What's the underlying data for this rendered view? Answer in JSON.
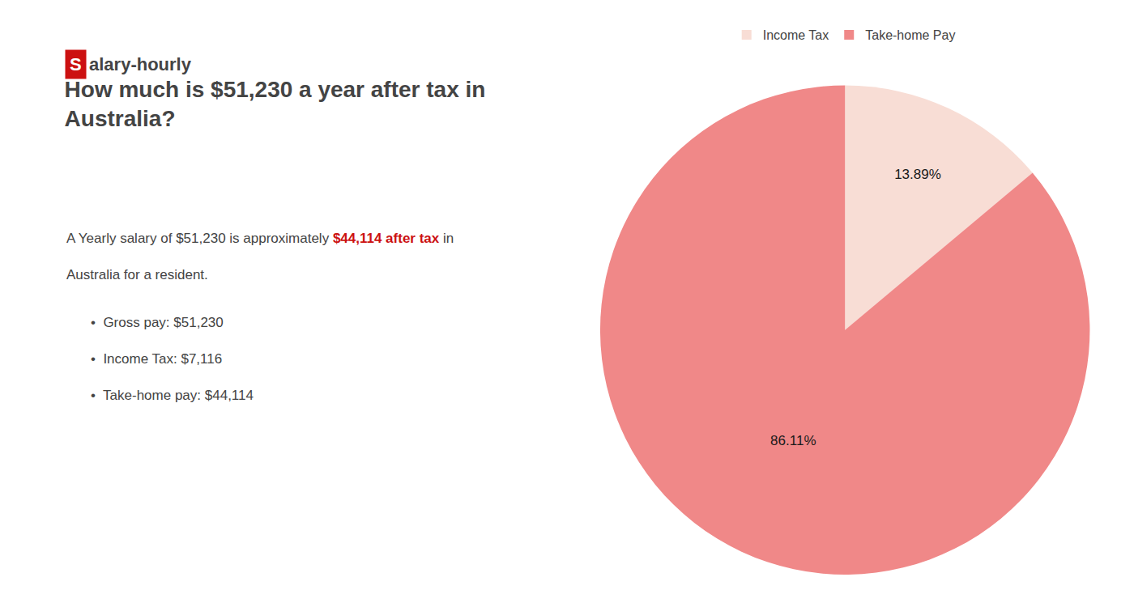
{
  "chart_data": {
    "type": "pie",
    "title": [
      "How much is $51,230 a year after tax in",
      "Australia?"
    ],
    "annotations": [
      [
        {
          "text": "S",
          "color": "#cc1111"
        },
        {
          "text": "alary-hourly"
        }
      ],
      [
        {
          "text": "A Yearly salary of $51,230 is approximately "
        },
        {
          "text": "$44,114 after tax",
          "color": "#cc1111"
        },
        {
          "text": " in"
        }
      ],
      [
        {
          "text": "Australia for a resident."
        }
      ],
      [
        {
          "text": "•  Gross pay: $51,230"
        }
      ],
      [
        {
          "text": "•  Income Tax: $7,116"
        }
      ],
      [
        {
          "text": "•  Take-home pay: $44,114"
        }
      ]
    ],
    "categories": [
      "Income Tax",
      "Take-home Pay"
    ],
    "values": [
      13.89,
      86.11
    ],
    "value_labels": [
      "13.89%",
      "86.11%"
    ],
    "colors": [
      "#f8ddd5",
      "#f08888"
    ],
    "data_labels": true,
    "legend": "top"
  }
}
